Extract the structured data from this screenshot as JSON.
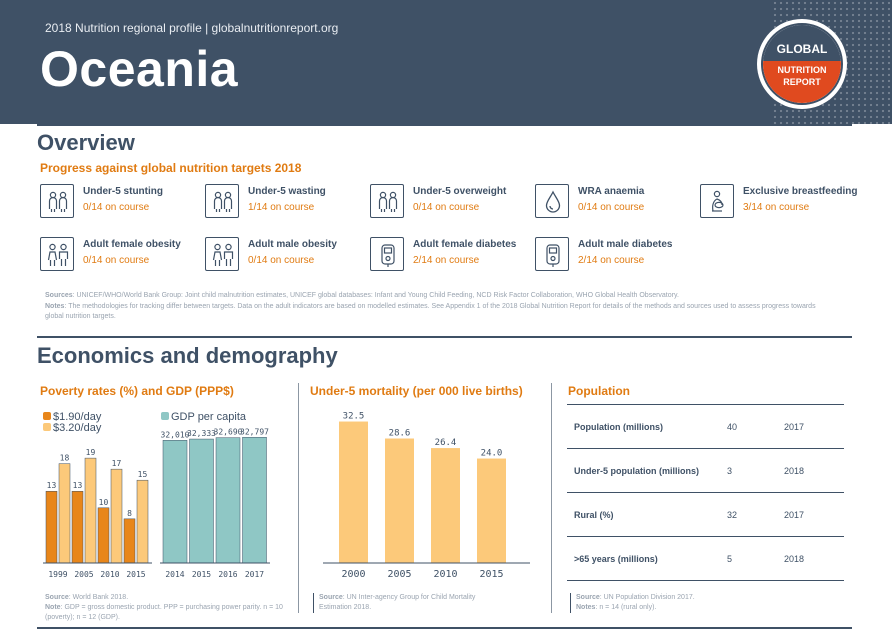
{
  "header": {
    "subtitle": "2018 Nutrition regional profile | globalnutritionreport.org",
    "title": "Oceania",
    "logo": {
      "line1": "GLOBAL",
      "line2": "NUTRITION",
      "line3": "REPORT"
    }
  },
  "overview": {
    "title": "Overview",
    "targets_title": "Progress against global nutrition targets 2018",
    "targets": [
      {
        "name": "Under-5 stunting",
        "status": "0/14 on course",
        "icon": "children-icon"
      },
      {
        "name": "Under-5 wasting",
        "status": "1/14 on course",
        "icon": "children-icon"
      },
      {
        "name": "Under-5 overweight",
        "status": "0/14 on course",
        "icon": "children-icon"
      },
      {
        "name": "WRA anaemia",
        "status": "0/14 on course",
        "icon": "blood-drop-icon"
      },
      {
        "name": "Exclusive breastfeeding",
        "status": "3/14 on course",
        "icon": "breastfeeding-icon"
      },
      {
        "name": "Adult female obesity",
        "status": "0/14 on course",
        "icon": "adults-icon"
      },
      {
        "name": "Adult male obesity",
        "status": "0/14 on course",
        "icon": "adults-icon"
      },
      {
        "name": "Adult female diabetes",
        "status": "2/14 on course",
        "icon": "glucose-meter-icon"
      },
      {
        "name": "Adult male diabetes",
        "status": "2/14 on course",
        "icon": "glucose-meter-icon"
      }
    ],
    "notes": {
      "sources_label": "Sources",
      "sources_text": ": UNICEF/WHO/World Bank Group: Joint child malnutrition estimates, UNICEF global databases: Infant and Young Child Feeding, NCD Risk Factor Collaboration, WHO Global Health Observatory.",
      "notes_label": "Notes",
      "notes_text": ": The methodologies for tracking differ between targets. Data on the adult indicators are based on modelled estimates. See Appendix 1 of the 2018 Global Nutrition Report for details of the methods and sources used to assess progress towards global nutrition targets."
    }
  },
  "economics": {
    "title": "Economics and demography",
    "poverty_title": "Poverty rates (%) and GDP (PPP$)",
    "mortality_title": "Under-5 mortality (per 000 live births)",
    "population_title": "Population",
    "poverty_source": {
      "source_label": "Source",
      "source_text": ": World Bank 2018.",
      "note_label": "Note",
      "note_text": ": GDP = gross domestic product. PPP = purchasing power parity. n = 10 (poverty); n = 12 (GDP)."
    },
    "mortality_source": {
      "source_label": "Source",
      "source_text": ": UN Inter-agency Group for Child Mortality Estimation 2018."
    },
    "population_source": {
      "source_label": "Source",
      "source_text": ": UN Population Division 2017.",
      "note_label": "Notes",
      "note_text": ": n = 14 (rural only)."
    },
    "population_table": [
      {
        "label": "Population (millions)",
        "value": "40",
        "year": "2017"
      },
      {
        "label": "Under-5 population (millions)",
        "value": "3",
        "year": "2018"
      },
      {
        "label": "Rural (%)",
        "value": "32",
        "year": "2017"
      },
      {
        "label": ">65 years (millions)",
        "value": "5",
        "year": "2018"
      }
    ]
  },
  "colors": {
    "navy": "#3f5166",
    "orange_dark": "#e8861a",
    "orange_light": "#fcc97a",
    "teal": "#8fc7c5",
    "accent_orange": "#e07b12"
  },
  "chart_data": [
    {
      "type": "bar",
      "categories": [
        "1999",
        "2005",
        "2010",
        "2015"
      ],
      "series": [
        {
          "name": "$1.90/day",
          "values": [
            13,
            13,
            10,
            8
          ],
          "labels": [
            "13",
            "13",
            "10",
            "8"
          ]
        },
        {
          "name": "$3.20/day",
          "values": [
            18,
            19,
            17,
            15
          ],
          "labels": [
            "18",
            "19",
            "17",
            "15"
          ]
        }
      ],
      "ylim": [
        0,
        25
      ],
      "legend": "top-left"
    },
    {
      "type": "bar",
      "categories": [
        "2014",
        "2015",
        "2016",
        "2017"
      ],
      "series": [
        {
          "name": "GDP per capita",
          "values": [
            32010,
            32333,
            32690,
            32797
          ],
          "labels": [
            "32,010",
            "32,333",
            "32,690",
            "32,797"
          ]
        }
      ],
      "ylim": [
        0,
        36000
      ],
      "legend": "top-left"
    },
    {
      "type": "bar",
      "categories": [
        "2000",
        "2005",
        "2010",
        "2015"
      ],
      "series": [
        {
          "values": [
            32.5,
            28.6,
            26.4,
            24.0
          ],
          "labels": [
            "32.5",
            "28.6",
            "26.4",
            "24.0"
          ]
        }
      ],
      "ylim": [
        0,
        34
      ]
    }
  ]
}
